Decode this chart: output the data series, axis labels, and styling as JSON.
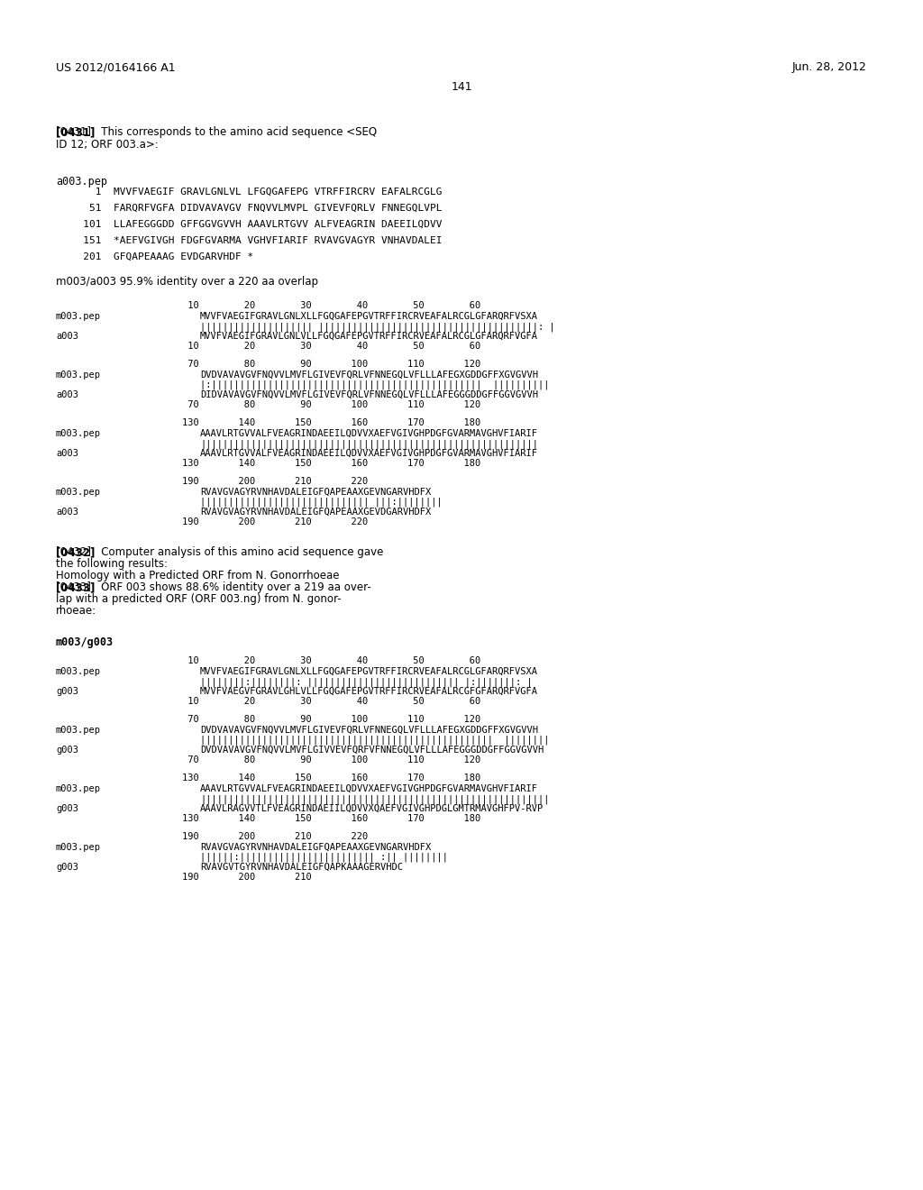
{
  "background_color": "#ffffff",
  "header_left": "US 2012/0164166 A1",
  "header_right": "Jun. 28, 2012",
  "page_number": "141",
  "para_0431_line1": "[0431]   This corresponds to the amino acid sequence <SEQ",
  "para_0431_line2": "ID 12; ORF 003.a>:",
  "a003_pep_title": "a003.pep",
  "a003_lines": [
    "     1  MVVFVAEGIF GRAVLGNLVL LFGQGAFEPG VTRFFIRCRV EAFALRCGLG",
    "    51  FARQRFVGFA DIDVAVAVGV FNQVVLMVPL GIVEVFQRLV FNNEGQLVPL",
    "   101  LLAFEGGGDD GFFGGVGVVH AAAVLRTGVV ALFVEAGRIN DAEEILQDVV",
    "   151  *AEFVGIVGH FDGFGVARMA VGHVFIARIF RVAVGVAGYR VNHAVDALEI",
    "   201  GFQAPEAAAG EVDGARVHDF *"
  ],
  "identity_line": "m003/a003 95.9% identity over a 220 aa overlap",
  "alignment_a003_blocks": [
    {
      "ruler_top": "         10        20        30        40        50        60",
      "seq1_label": "m003.pep",
      "seq1": "MVVFVAEGIFGRAVLGNLXLLFGQGAFEPGVTRFFIRCRVEAFALRCGLGFARQRFVSXA",
      "match": "|||||||||||||||||||| |||||||||||||||||||||||||||||||||||||||: |",
      "seq2_label": "a003",
      "seq2": "MVVFVAEGIFGRAVLGNLVLLFGQGAFEPGVTRFFIRCRVEAFALRCGLGFARQRFVGFA",
      "ruler_bot": "         10        20        30        40        50        60"
    },
    {
      "ruler_top": "         70        80        90       100       110       120",
      "seq1_label": "m003.pep",
      "seq1": "DVDVAVAVGVFNQVVLMVFLGIVEVFQRLVFNNEGQLVFLLLAFEGXGDDGFFXGVGVVH",
      "match": "|:||||||||||||||||||||||||||||||||||||||||||||||||  ||||||||||",
      "seq2_label": "a003",
      "seq2": "DIDVAVAVGVFNQVVLMVFLGIVEVFQRLVFNNEGQLVFLLLAFEGGGDDGFFGGVGVVH",
      "ruler_bot": "         70        80        90       100       110       120"
    },
    {
      "ruler_top": "        130       140       150       160       170       180",
      "seq1_label": "m003.pep",
      "seq1": "AAAVLRTGVVALFVEAGRINDAEEILQDVVXAEFVGIVGHPDGFGVARMAVGHVFIARIF",
      "match": "||||||||||||||||||||||||||||||||||||||||||||||||||||||||||||",
      "seq2_label": "a003",
      "seq2": "AAAVLRTGVVALFVEAGRINDAEEILQDVVXAEFVGIVGHPDGFGVARMAVGHVFIARIF",
      "ruler_bot": "        130       140       150       160       170       180"
    },
    {
      "ruler_top": "        190       200       210       220",
      "seq1_label": "m003.pep",
      "seq1": "RVAVGVAGYRVNHAVDALEIGFQAPEAAXGEVNGARVHDFX",
      "match": "|||||||||||||||||||||||||||||| |||:||||||||",
      "seq2_label": "a003",
      "seq2": "RVAVGVAGYRVNHAVDALEIGFQAPEAAXGEVDGARVHDFX",
      "ruler_bot": "        190       200       210       220"
    }
  ],
  "para_0432_lines": [
    "[0432]   Computer analysis of this amino acid sequence gave",
    "the following results:",
    "Homology with a Predicted ORF from N. Gonorrhoeae",
    "[0433]   ORF 003 shows 88.6% identity over a 219 aa over-",
    "lap with a predicted ORF (ORF 003.ng) from N. gonor-",
    "rhoeae:"
  ],
  "g003_title": "m003/g003",
  "alignment_g003_blocks": [
    {
      "ruler_top": "         10        20        30        40        50        60",
      "seq1_label": "m003.pep",
      "seq1": "MVVFVAEGIFGRAVLGNLXLLFGQGAFEPGVTRFFIRCRVEAFALRCGLGFARQRFVSXA",
      "match": "||||||||:||||||||: ||||||||||||||||||||||||||| |:|||||||: |",
      "seq2_label": "g003",
      "seq2": "MVVFVAEGVFGRAVLGHLVLLFGQGAFEPGVTRFFIRCRVEAFALRCGFGFARQRFVGFA",
      "ruler_bot": "         10        20        30        40        50        60"
    },
    {
      "ruler_top": "         70        80        90       100       110       120",
      "seq1_label": "m003.pep",
      "seq1": "DVDVAVAVGVFNQVVLMVFLGIVEVFQRLVFNNEGQLVFLLLAFEGXGDDGFFXGVGVVH",
      "match": "||||||||||||||||||||||||||||||||||||||||||||||||||||  ||||||||",
      "seq2_label": "g003",
      "seq2": "DVDVAVAVGVFNQVVLMVFLGIVVEVFQRFVFNNEGQLVFLLLAFEGGGDDGFFGGVGVVH",
      "ruler_bot": "         70        80        90       100       110       120"
    },
    {
      "ruler_top": "        130       140       150       160       170       180",
      "seq1_label": "m003.pep",
      "seq1": "AAAVLRTGVVALFVEAGRINDAEEILQDVVXAEFVGIVGHPDGFGVARMAVGHVFIARIF",
      "match": "||||||||||||||||||||||||||||||||||||||||||||||||||||||||||||||",
      "seq2_label": "g003",
      "seq2": "AAAVLRAGVVTLFVEAGRINDAEIILQDVVXQAEFVGIVGHPDGLGMTRMAVGHFPV-RVP",
      "ruler_bot": "        130       140       150       160       170       180"
    },
    {
      "ruler_top": "        190       200       210       220",
      "seq1_label": "m003.pep",
      "seq1": "RVAVGVAGYRVNHAVDALEIGFQAPEAAXGEVNGARVHDFX",
      "match": "||||||:|||||||||||||||||||||||| :|| ||||||||",
      "seq2_label": "g003",
      "seq2": "RVAVGVTGYRVNHAVDALEIGFQAPKAAAGERVHDC",
      "ruler_bot": "        190       200       210"
    }
  ]
}
